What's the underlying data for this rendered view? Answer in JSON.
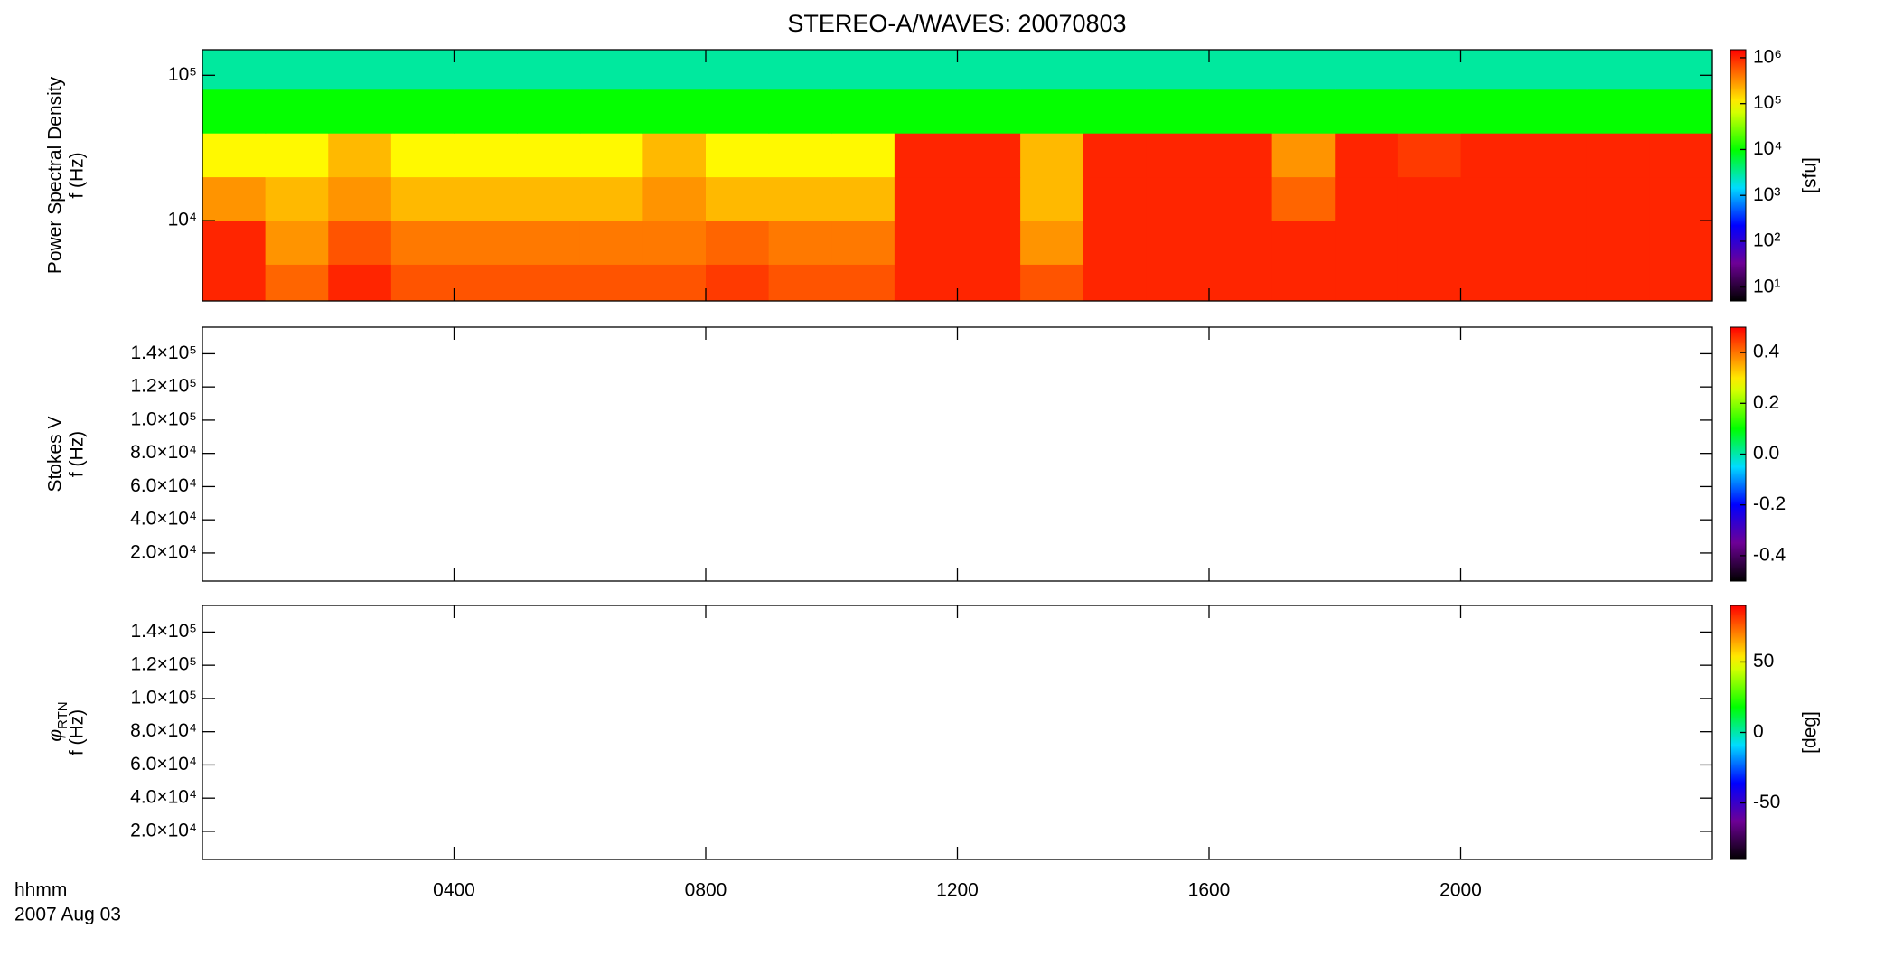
{
  "chart_data": [
    {
      "type": "heatmap",
      "title": "STEREO-A/WAVES: 20070803",
      "ylabel": "Power Spectral Density",
      "ylabel2": "f (Hz)",
      "xlim": [
        0,
        24
      ],
      "ylim": [
        2800,
        150000
      ],
      "log_y": true,
      "yticks": [
        {
          "value": 10000,
          "label": "10⁴"
        },
        {
          "value": 100000,
          "label": "10⁵"
        }
      ],
      "x_bins": [
        0,
        1,
        2,
        3,
        4,
        5,
        6,
        7,
        8,
        9,
        10,
        11,
        12,
        13,
        14,
        15,
        16,
        17,
        18,
        19,
        20,
        21,
        22,
        23,
        24
      ],
      "y_bins": [
        2800,
        5000,
        10000,
        20000,
        40000,
        80000,
        150000
      ],
      "values": [
        [
          1000000,
          500000,
          1000000,
          600000,
          600000,
          600000,
          600000,
          600000,
          800000,
          600000,
          600000,
          1000000,
          1000000,
          600000,
          1000000,
          1000000,
          1000000,
          1000000,
          1000000,
          1000000,
          1000000,
          1000000,
          1000000,
          1000000
        ],
        [
          1000000,
          300000,
          600000,
          400000,
          400000,
          400000,
          400000,
          400000,
          500000,
          400000,
          400000,
          1000000,
          1000000,
          300000,
          1000000,
          1000000,
          1000000,
          1000000,
          1000000,
          1000000,
          1000000,
          1000000,
          1000000,
          1000000
        ],
        [
          300000,
          200000,
          300000,
          200000,
          200000,
          200000,
          200000,
          300000,
          200000,
          200000,
          200000,
          1000000,
          1000000,
          200000,
          1000000,
          1000000,
          1000000,
          500000,
          1000000,
          1000000,
          1000000,
          1000000,
          1000000,
          1000000
        ],
        [
          100000,
          100000,
          200000,
          100000,
          100000,
          100000,
          100000,
          200000,
          100000,
          100000,
          100000,
          1000000,
          1000000,
          200000,
          1000000,
          1000000,
          1000000,
          300000,
          1000000,
          800000,
          1000000,
          1000000,
          1000000,
          1000000
        ],
        [
          10000,
          10000,
          10000,
          10000,
          10000,
          10000,
          10000,
          10000,
          10000,
          10000,
          10000,
          10000,
          10000,
          10000,
          10000,
          10000,
          10000,
          10000,
          10000,
          10000,
          10000,
          10000,
          10000,
          10000
        ],
        [
          3000,
          3000,
          3000,
          3000,
          3000,
          3000,
          3000,
          3000,
          3000,
          3000,
          3000,
          3000,
          3000,
          3000,
          3000,
          3000,
          3000,
          3000,
          3000,
          3000,
          3000,
          3000,
          3000,
          3000
        ]
      ],
      "clim": [
        5,
        1500000
      ],
      "log_c": true,
      "cticks": [
        {
          "value": 10,
          "label": "10¹"
        },
        {
          "value": 100,
          "label": "10²"
        },
        {
          "value": 1000,
          "label": "10³"
        },
        {
          "value": 10000,
          "label": "10⁴"
        },
        {
          "value": 100000,
          "label": "10⁵"
        },
        {
          "value": 1000000,
          "label": "10⁶"
        }
      ],
      "clabel": "[sfu]"
    },
    {
      "type": "heatmap",
      "ylabel": "Stokes V",
      "ylabel2": "f (Hz)",
      "xlim": [
        0,
        24
      ],
      "ylim": [
        3100,
        156000
      ],
      "yticks": [
        {
          "value": 20000,
          "label": "2.0×10⁴"
        },
        {
          "value": 40000,
          "label": "4.0×10⁴"
        },
        {
          "value": 60000,
          "label": "6.0×10⁴"
        },
        {
          "value": 80000,
          "label": "8.0×10⁴"
        },
        {
          "value": 100000,
          "label": "1.0×10⁵"
        },
        {
          "value": 120000,
          "label": "1.2×10⁵"
        },
        {
          "value": 140000,
          "label": "1.4×10⁵"
        }
      ],
      "clim": [
        -0.5,
        0.5
      ],
      "cticks": [
        -0.4,
        -0.2,
        {
          "value": 0,
          "label": "0.0"
        },
        0.2,
        0.4
      ]
    },
    {
      "type": "heatmap",
      "ylabel": "φ",
      "ylabel_sub": "RTN",
      "ylabel2": "f (Hz)",
      "xlim": [
        0,
        24
      ],
      "ylim": [
        3100,
        156000
      ],
      "yticks": [
        {
          "value": 20000,
          "label": "2.0×10⁴"
        },
        {
          "value": 40000,
          "label": "4.0×10⁴"
        },
        {
          "value": 60000,
          "label": "6.0×10⁴"
        },
        {
          "value": 80000,
          "label": "8.0×10⁴"
        },
        {
          "value": 100000,
          "label": "1.0×10⁵"
        },
        {
          "value": 120000,
          "label": "1.2×10⁵"
        },
        {
          "value": 140000,
          "label": "1.4×10⁵"
        }
      ],
      "clim": [
        -90,
        90
      ],
      "cticks": [
        -50,
        0,
        50
      ],
      "clabel": "[deg]",
      "xticks": [
        {
          "value": 4,
          "label": "0400"
        },
        {
          "value": 8,
          "label": "0800"
        },
        {
          "value": 12,
          "label": "1200"
        },
        {
          "value": 16,
          "label": "1600"
        },
        {
          "value": 20,
          "label": "2000"
        }
      ],
      "x_label_lines": [
        "hhmm",
        "2007 Aug 03"
      ]
    }
  ]
}
